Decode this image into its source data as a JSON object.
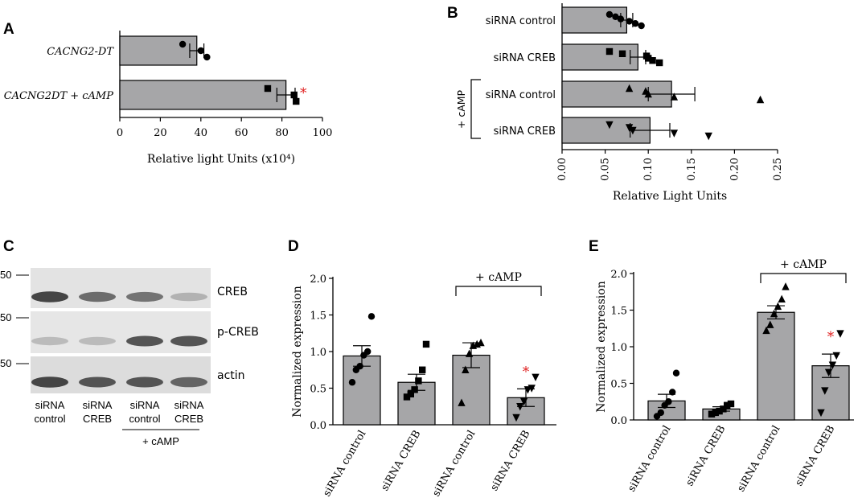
{
  "chart_data": [
    {
      "panel": "A",
      "type": "bar",
      "orientation": "horizontal",
      "categories": [
        "CACNG2-DT",
        "CACNG2DT + cAMP"
      ],
      "values": [
        38,
        82
      ],
      "errors": [
        3.5,
        4.5
      ],
      "points": [
        [
          31,
          40,
          43
        ],
        [
          73,
          86,
          87
        ]
      ],
      "markers": [
        "circle",
        "square"
      ],
      "significance": [
        false,
        true
      ],
      "sig_symbol": "*",
      "xlabel": "Relative light Units (x10⁴)",
      "xlim": [
        0,
        100
      ],
      "ticks": [
        "0",
        "20",
        "40",
        "60",
        "80",
        "100"
      ]
    },
    {
      "panel": "B",
      "type": "bar",
      "orientation": "horizontal",
      "categories": [
        "siRNA control",
        "siRNA CREB",
        "siRNA control",
        "siRNA CREB"
      ],
      "values": [
        0.075,
        0.088,
        0.127,
        0.102
      ],
      "errors": [
        0.007,
        0.009,
        0.027,
        0.023
      ],
      "points": [
        [
          0.055,
          0.062,
          0.068,
          0.078,
          0.085,
          0.092
        ],
        [
          0.055,
          0.07,
          0.098,
          0.1,
          0.105,
          0.113
        ],
        [
          0.078,
          0.097,
          0.1,
          0.13,
          0.23
        ],
        [
          0.055,
          0.078,
          0.082,
          0.13,
          0.17
        ]
      ],
      "markers": [
        "circle",
        "square",
        "triangle-up",
        "triangle-down"
      ],
      "group_label": "+ cAMP",
      "xlabel": "Relative Light Units",
      "xlim": [
        0,
        0.25
      ],
      "ticks": [
        "0.00",
        "0.05",
        "0.10",
        "0.15",
        "0.20",
        "0.25"
      ]
    },
    {
      "panel": "D",
      "type": "bar",
      "categories": [
        "siRNA control",
        "siRNA CREB",
        "siRNA control",
        "siRNA CREB"
      ],
      "values": [
        0.94,
        0.58,
        0.95,
        0.37
      ],
      "errors": [
        0.14,
        0.11,
        0.17,
        0.12
      ],
      "points": [
        [
          0.58,
          0.75,
          0.8,
          0.95,
          1.0,
          1.48
        ],
        [
          0.38,
          0.42,
          0.48,
          0.6,
          0.75,
          1.1
        ],
        [
          0.3,
          0.75,
          0.97,
          1.08,
          1.1,
          1.12
        ],
        [
          0.1,
          0.25,
          0.32,
          0.48,
          0.5,
          0.65
        ]
      ],
      "markers": [
        "circle",
        "square",
        "triangle-up",
        "triangle-down"
      ],
      "significance": [
        false,
        false,
        false,
        true
      ],
      "sig_symbol": "*",
      "group_label": "+ cAMP",
      "ylabel": "Normalized expression",
      "ylim": [
        0,
        2.0
      ],
      "ticks": [
        "0.0",
        "0.5",
        "1.0",
        "1.5",
        "2.0"
      ]
    },
    {
      "panel": "E",
      "type": "bar",
      "categories": [
        "siRNA control",
        "siRNA CREB",
        "siRNA control",
        "siRNA CREB"
      ],
      "values": [
        0.26,
        0.15,
        1.47,
        0.74
      ],
      "errors": [
        0.09,
        0.03,
        0.09,
        0.16
      ],
      "points": [
        [
          0.05,
          0.1,
          0.2,
          0.25,
          0.38,
          0.64
        ],
        [
          0.08,
          0.1,
          0.12,
          0.15,
          0.2,
          0.22
        ],
        [
          1.22,
          1.3,
          1.45,
          1.55,
          1.65,
          1.82
        ],
        [
          0.1,
          0.4,
          0.65,
          0.75,
          0.88,
          1.18
        ]
      ],
      "markers": [
        "circle",
        "square",
        "triangle-up",
        "triangle-down"
      ],
      "significance": [
        false,
        false,
        false,
        true
      ],
      "sig_symbol": "*",
      "group_label": "+ cAMP",
      "ylabel": "Normalized expression",
      "ylim": [
        0,
        2.0
      ],
      "ticks": [
        "0.0",
        "0.5",
        "1.0",
        "1.5",
        "2.0"
      ]
    }
  ],
  "blot": {
    "panel": "C",
    "mw_markers": [
      "50",
      "50",
      "50"
    ],
    "rows": [
      "CREB",
      "p-CREB",
      "actin"
    ],
    "lanes": [
      {
        "line1": "siRNA",
        "line2": "control"
      },
      {
        "line1": "siRNA",
        "line2": "CREB"
      },
      {
        "line1": "siRNA",
        "line2": "control"
      },
      {
        "line1": "siRNA",
        "line2": "CREB"
      }
    ],
    "group_label": "+ cAMP",
    "band_intensity": {
      "CREB": [
        0.85,
        0.6,
        0.55,
        0.15
      ],
      "p-CREB": [
        0.1,
        0.1,
        0.75,
        0.75
      ],
      "actin": [
        0.85,
        0.75,
        0.75,
        0.65
      ]
    }
  },
  "colors": {
    "bar": "#a6a6a8",
    "axis": "#000000",
    "significance": "#e02020"
  }
}
